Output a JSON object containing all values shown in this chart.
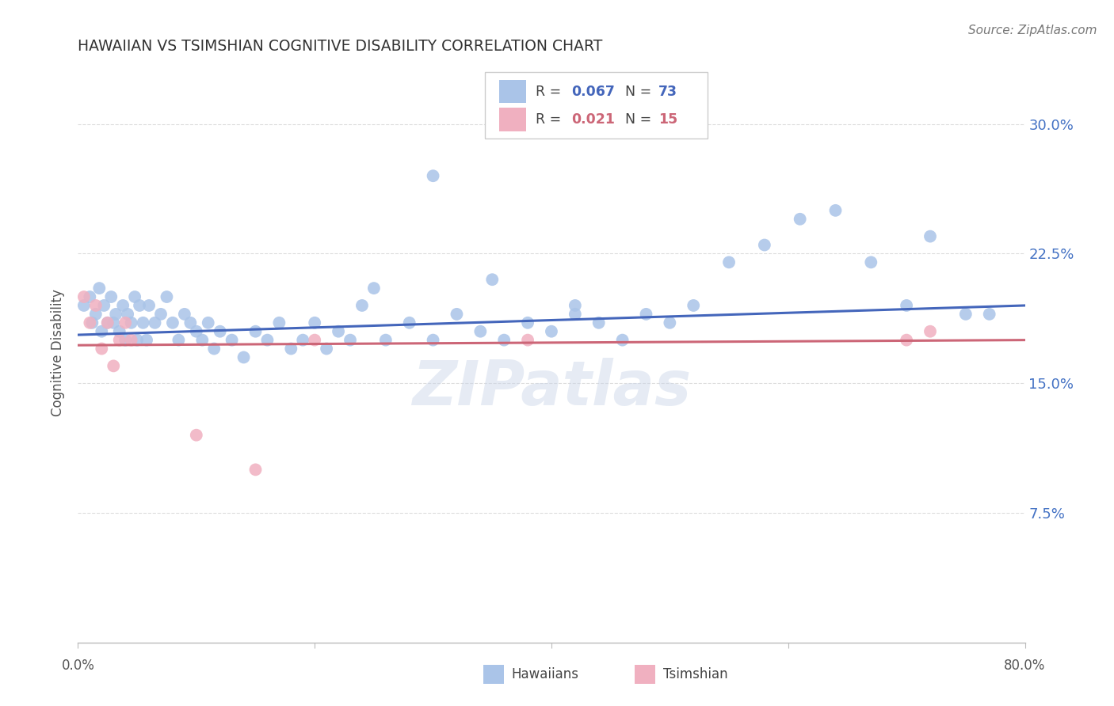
{
  "title": "HAWAIIAN VS TSIMSHIAN COGNITIVE DISABILITY CORRELATION CHART",
  "source": "Source: ZipAtlas.com",
  "ylabel": "Cognitive Disability",
  "ytick_labels": [
    "7.5%",
    "15.0%",
    "22.5%",
    "30.0%"
  ],
  "ytick_values": [
    0.075,
    0.15,
    0.225,
    0.3
  ],
  "xlim": [
    0.0,
    0.8
  ],
  "ylim": [
    0.0,
    0.335
  ],
  "hawaiian_color": "#aac4e8",
  "tsimshian_color": "#f0b0c0",
  "line_blue": "#4466bb",
  "line_pink": "#cc6677",
  "hawaiians_x": [
    0.005,
    0.01,
    0.012,
    0.015,
    0.018,
    0.02,
    0.022,
    0.025,
    0.028,
    0.03,
    0.032,
    0.035,
    0.038,
    0.04,
    0.042,
    0.045,
    0.048,
    0.05,
    0.052,
    0.055,
    0.058,
    0.06,
    0.065,
    0.07,
    0.075,
    0.08,
    0.085,
    0.09,
    0.095,
    0.1,
    0.105,
    0.11,
    0.115,
    0.12,
    0.13,
    0.14,
    0.15,
    0.16,
    0.17,
    0.18,
    0.19,
    0.2,
    0.21,
    0.22,
    0.23,
    0.24,
    0.26,
    0.28,
    0.3,
    0.32,
    0.34,
    0.36,
    0.38,
    0.4,
    0.42,
    0.44,
    0.46,
    0.48,
    0.5,
    0.52,
    0.55,
    0.58,
    0.61,
    0.64,
    0.67,
    0.7,
    0.72,
    0.75,
    0.77,
    0.3,
    0.25,
    0.35,
    0.42
  ],
  "hawaiians_y": [
    0.195,
    0.2,
    0.185,
    0.19,
    0.205,
    0.18,
    0.195,
    0.185,
    0.2,
    0.185,
    0.19,
    0.18,
    0.195,
    0.175,
    0.19,
    0.185,
    0.2,
    0.175,
    0.195,
    0.185,
    0.175,
    0.195,
    0.185,
    0.19,
    0.2,
    0.185,
    0.175,
    0.19,
    0.185,
    0.18,
    0.175,
    0.185,
    0.17,
    0.18,
    0.175,
    0.165,
    0.18,
    0.175,
    0.185,
    0.17,
    0.175,
    0.185,
    0.17,
    0.18,
    0.175,
    0.195,
    0.175,
    0.185,
    0.175,
    0.19,
    0.18,
    0.175,
    0.185,
    0.18,
    0.195,
    0.185,
    0.175,
    0.19,
    0.185,
    0.195,
    0.22,
    0.23,
    0.245,
    0.25,
    0.22,
    0.195,
    0.235,
    0.19,
    0.19,
    0.27,
    0.205,
    0.21,
    0.19
  ],
  "tsimshian_x": [
    0.005,
    0.01,
    0.015,
    0.02,
    0.025,
    0.03,
    0.035,
    0.04,
    0.045,
    0.1,
    0.15,
    0.2,
    0.38,
    0.7,
    0.72
  ],
  "tsimshian_y": [
    0.2,
    0.185,
    0.195,
    0.17,
    0.185,
    0.16,
    0.175,
    0.185,
    0.175,
    0.12,
    0.1,
    0.175,
    0.175,
    0.175,
    0.18
  ],
  "watermark": "ZIPatlas",
  "background_color": "#ffffff",
  "grid_color": "#dddddd",
  "h_line_start_y": 0.178,
  "h_line_end_y": 0.195,
  "t_line_start_y": 0.172,
  "t_line_end_y": 0.175
}
